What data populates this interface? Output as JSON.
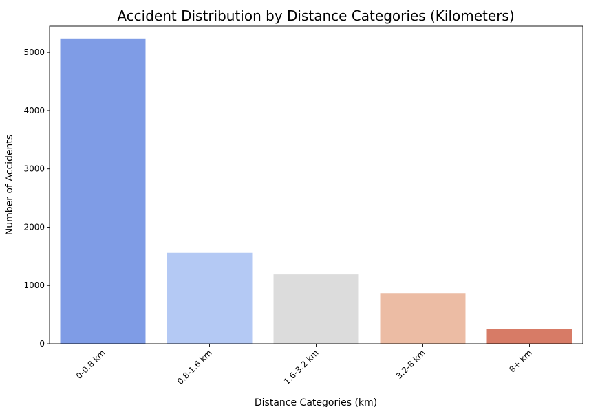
{
  "chart_data": {
    "type": "bar",
    "title": "Accident Distribution by Distance Categories (Kilometers)",
    "xlabel": "Distance Categories (km)",
    "ylabel": "Number of Accidents",
    "categories": [
      "0-0.8 km",
      "0.8-1.6 km",
      "1.6-3.2 km",
      "3.2-8 km",
      "8+ km"
    ],
    "values": [
      5240,
      1560,
      1190,
      870,
      250
    ],
    "colors": [
      "#7f9ce6",
      "#b4c9f4",
      "#dcdcdc",
      "#ecbca4",
      "#d77b66"
    ],
    "ylim": [
      0,
      5450
    ],
    "yticks": [
      0,
      1000,
      2000,
      3000,
      4000,
      5000
    ],
    "grid": false,
    "legend": "none"
  }
}
